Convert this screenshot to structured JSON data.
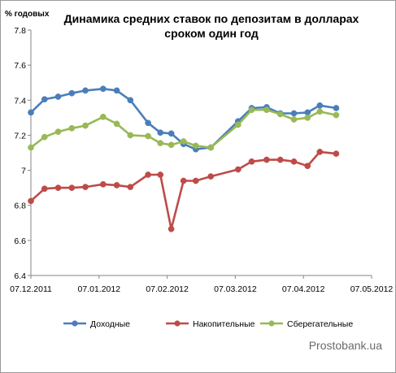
{
  "chart_data": {
    "type": "line",
    "title_lines": [
      "Динамика средних ставок по депозитам в долларах",
      "сроком один год"
    ],
    "ylabel": "% годовых",
    "xlabel": "",
    "ylim": [
      6.4,
      7.8
    ],
    "y_ticks": [
      "6.4",
      "6.6",
      "6.8",
      "7",
      "7.2",
      "7.4",
      "7.6",
      "7.8"
    ],
    "x_ticks": [
      "07.12.2011",
      "07.01.2012",
      "07.02.2012",
      "07.03.2012",
      "07.04.2012",
      "07.05.2012"
    ],
    "x_tick_index": [
      0,
      5,
      10,
      15,
      20,
      25
    ],
    "point_count": 26,
    "grid": false,
    "legend_position": "bottom",
    "series": [
      {
        "name": "Доходные",
        "color": "#4a7ebb",
        "values": [
          7.33,
          7.405,
          7.42,
          7.44,
          7.455,
          7.465,
          7.455,
          7.4,
          7.27,
          7.215,
          7.21,
          7.15,
          7.12,
          7.13,
          7.28,
          7.355,
          7.36,
          7.325,
          7.325,
          7.33,
          7.37,
          7.355
        ]
      },
      {
        "name": "Накопительные",
        "color": "#be4b48",
        "values": [
          6.825,
          6.895,
          6.9,
          6.9,
          6.905,
          6.92,
          6.915,
          6.905,
          6.975,
          6.975,
          6.665,
          6.94,
          6.94,
          6.965,
          7.005,
          7.05,
          7.06,
          7.06,
          7.05,
          7.025,
          7.105,
          7.095
        ]
      },
      {
        "name": "Сберегательные",
        "color": "#98b954",
        "values": [
          7.13,
          7.19,
          7.22,
          7.24,
          7.255,
          7.305,
          7.265,
          7.2,
          7.195,
          7.155,
          7.145,
          7.165,
          7.14,
          7.13,
          7.26,
          7.345,
          7.345,
          7.32,
          7.29,
          7.3,
          7.335,
          7.315
        ]
      }
    ],
    "x_index": [
      0,
      1,
      2,
      3,
      4,
      5.3,
      6.3,
      7.3,
      8.6,
      9.5,
      10.3,
      11.2,
      12.1,
      13.2,
      15.2,
      16.2,
      17.3,
      18.3,
      19.3,
      20.3,
      21.2,
      22.4
    ]
  },
  "watermark": "Prostobank.ua"
}
